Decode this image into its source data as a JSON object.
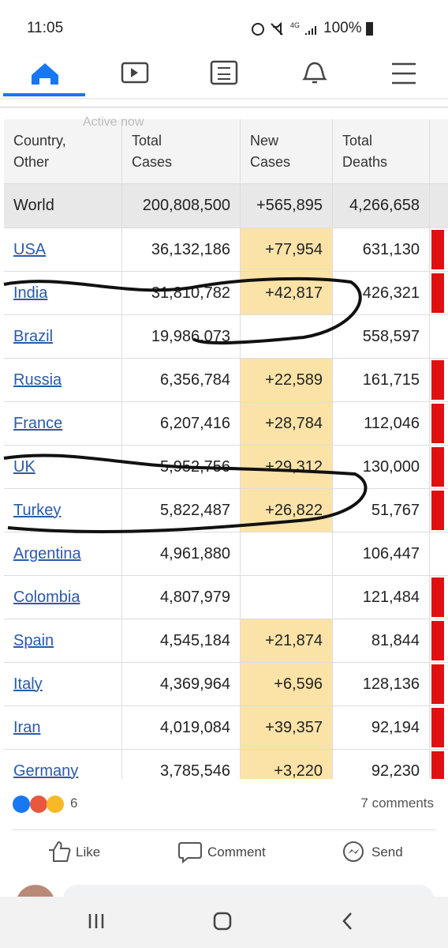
{
  "status_bar": {
    "time": "11:05",
    "network": "4G",
    "battery": "100%"
  },
  "table": {
    "overlay": "Active now",
    "header": [
      [
        "Country,",
        "Other"
      ],
      [
        "Total",
        "Cases"
      ],
      [
        "New",
        "Cases"
      ],
      [
        "Total",
        "Deaths"
      ]
    ],
    "world": [
      "World",
      "200,808,500",
      "+565,895",
      "4,266,658"
    ],
    "rows": [
      [
        "USA",
        "36,132,186",
        "+77,954",
        "631,130"
      ],
      [
        "India",
        "31,810,782",
        "+42,817",
        "426,321"
      ],
      [
        "Brazil",
        "19,986,073",
        null,
        "558,597"
      ],
      [
        "Russia",
        "6,356,784",
        "+22,589",
        "161,715"
      ],
      [
        "France",
        "6,207,416",
        "+28,784",
        "112,046"
      ],
      [
        "UK",
        "5,952,756",
        "+29,312",
        "130,000"
      ],
      [
        "Turkey",
        "5,822,487",
        "+26,822",
        "51,767"
      ],
      [
        "Argentina",
        "4,961,880",
        null,
        "106,447"
      ],
      [
        "Colombia",
        "4,807,979",
        null,
        "121,484"
      ],
      [
        "Spain",
        "4,545,184",
        "+21,874",
        "81,844"
      ],
      [
        "Italy",
        "4,369,964",
        "+6,596",
        "128,136"
      ],
      [
        "Iran",
        "4,019,084",
        "+39,357",
        "92,194"
      ],
      [
        "Germany",
        "3,785,546",
        "+3,220",
        "92,230"
      ]
    ]
  },
  "post": {
    "reaction_count": "6",
    "comments": "7 comments",
    "actions": [
      "Like",
      "Comment",
      "Send"
    ]
  }
}
